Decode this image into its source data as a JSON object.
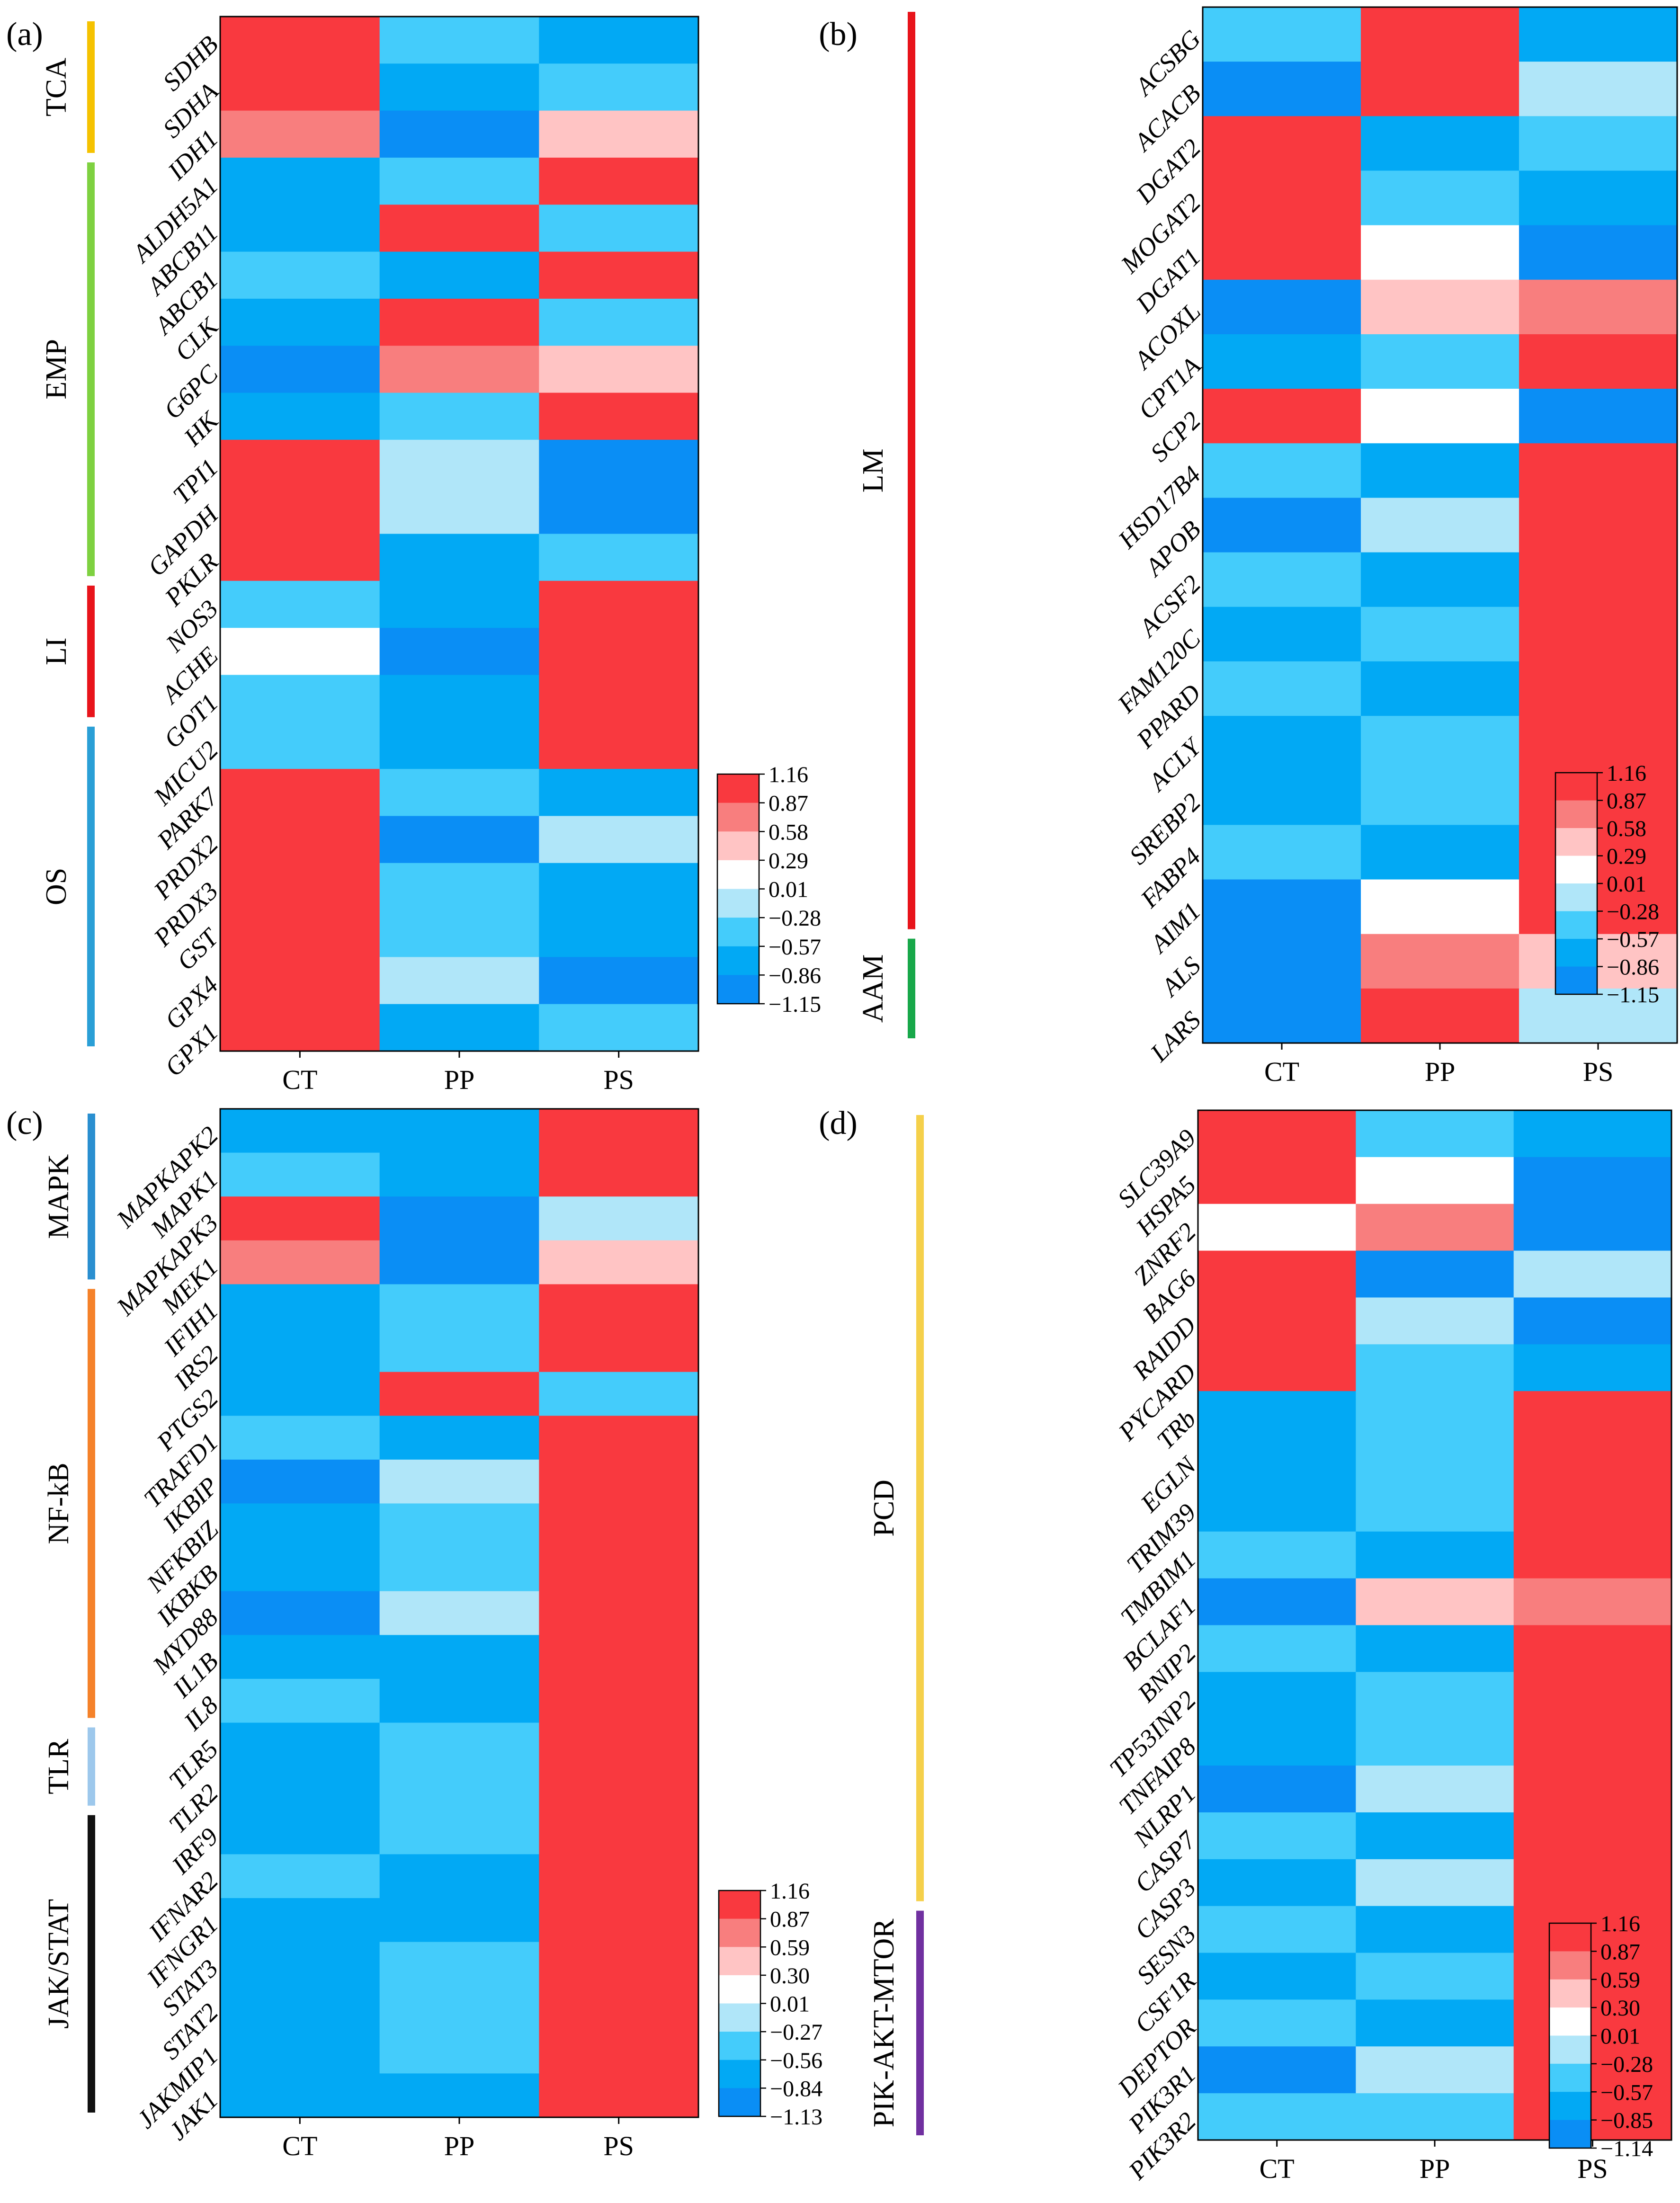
{
  "chart_data": [
    {
      "type": "heatmap",
      "panel_label": "(a)",
      "columns": [
        "CT",
        "PP",
        "PS"
      ],
      "rows": [
        "SDHB",
        "SDHA",
        "IDH1",
        "ALDH5A1",
        "ABCB11",
        "ABCB1",
        "CLK",
        "G6PC",
        "HK",
        "TPI1",
        "GAPDH",
        "PKLR",
        "NOS3",
        "ACHE",
        "GOT1",
        "MICU2",
        "PARK7",
        "PRDX2",
        "PRDX3",
        "GST",
        "GPX4",
        "GPX1"
      ],
      "values": [
        [
          1.16,
          -0.57,
          -0.86
        ],
        [
          1.16,
          -0.86,
          -0.57
        ],
        [
          0.87,
          -1.0,
          0.43
        ],
        [
          -0.86,
          -0.57,
          1.16
        ],
        [
          -0.86,
          1.16,
          -0.57
        ],
        [
          -0.57,
          -0.86,
          1.16
        ],
        [
          -0.86,
          1.16,
          -0.57
        ],
        [
          -1.0,
          0.87,
          0.43
        ],
        [
          -0.86,
          -0.57,
          1.16
        ],
        [
          1.16,
          -0.15,
          -1.0
        ],
        [
          1.16,
          -0.15,
          -1.0
        ],
        [
          1.16,
          -0.86,
          -0.57
        ],
        [
          -0.57,
          -0.86,
          1.16
        ],
        [
          0.15,
          -1.0,
          1.16
        ],
        [
          -0.57,
          -0.86,
          1.16
        ],
        [
          -0.57,
          -0.86,
          1.16
        ],
        [
          1.16,
          -0.57,
          -0.86
        ],
        [
          1.16,
          -1.0,
          -0.15
        ],
        [
          1.16,
          -0.57,
          -0.86
        ],
        [
          1.16,
          -0.57,
          -0.86
        ],
        [
          1.16,
          -0.15,
          -1.0
        ],
        [
          1.16,
          -0.86,
          -0.57
        ]
      ],
      "groups": [
        {
          "name": "TCA",
          "rows": [
            0,
            2
          ],
          "color": "#f5c200"
        },
        {
          "name": "EMP",
          "rows": [
            3,
            11
          ],
          "color": "#7ed140"
        },
        {
          "name": "LI",
          "rows": [
            12,
            14
          ],
          "color": "#e8141b"
        },
        {
          "name": "OS",
          "rows": [
            15,
            21
          ],
          "color": "#2a9fd6"
        }
      ],
      "colorbar_ticks": [
        "1.16",
        "0.87",
        "0.58",
        "0.29",
        "0.01",
        "−0.28",
        "−0.57",
        "−0.86",
        "−1.15"
      ]
    },
    {
      "type": "heatmap",
      "panel_label": "(b)",
      "columns": [
        "CT",
        "PP",
        "PS"
      ],
      "rows": [
        "ACSBG",
        "ACACB",
        "DGAT2",
        "MOGAT2",
        "DGAT1",
        "ACOXL",
        "CPT1A",
        "SCP2",
        "HSD17B4",
        "APOB",
        "ACSF2",
        "FAM120C",
        "PPARD",
        "ACLY",
        "SREBP2",
        "FABP4",
        "AIM1",
        "ALS",
        "LARS"
      ],
      "values": [
        [
          -0.57,
          1.16,
          -0.86
        ],
        [
          -1.0,
          1.16,
          -0.15
        ],
        [
          1.16,
          -0.86,
          -0.57
        ],
        [
          1.16,
          -0.57,
          -0.86
        ],
        [
          1.16,
          0.15,
          -1.0
        ],
        [
          -1.0,
          0.43,
          0.87
        ],
        [
          -0.86,
          -0.57,
          1.16
        ],
        [
          1.16,
          0.15,
          -1.0
        ],
        [
          -0.57,
          -0.86,
          1.16
        ],
        [
          -1.0,
          -0.15,
          1.16
        ],
        [
          -0.57,
          -0.86,
          1.16
        ],
        [
          -0.86,
          -0.57,
          1.16
        ],
        [
          -0.57,
          -0.86,
          1.16
        ],
        [
          -0.86,
          -0.57,
          1.16
        ],
        [
          -0.86,
          -0.57,
          1.16
        ],
        [
          -0.57,
          -0.86,
          1.16
        ],
        [
          -1.0,
          0.15,
          1.16
        ],
        [
          -1.0,
          0.87,
          0.43
        ],
        [
          -1.0,
          1.16,
          -0.15
        ]
      ],
      "groups": [
        {
          "name": "LM",
          "rows": [
            0,
            16
          ],
          "color": "#e8141b"
        },
        {
          "name": "AAM",
          "rows": [
            17,
            18
          ],
          "color": "#18a84a"
        }
      ],
      "colorbar_ticks": [
        "1.16",
        "0.87",
        "0.58",
        "0.29",
        "0.01",
        "−0.28",
        "−0.57",
        "−0.86",
        "−1.15"
      ]
    },
    {
      "type": "heatmap",
      "panel_label": "(c)",
      "columns": [
        "CT",
        "PP",
        "PS"
      ],
      "rows": [
        "MAPKAPK2",
        "MAPK1",
        "MAPKAPK3",
        "MEK1",
        "IFIH1",
        "IRS2",
        "PTGS2",
        "TRAFD1",
        "IKBIP",
        "NFKBIZ",
        "IKBKB",
        "MYD88",
        "IL1B",
        "IL8",
        "TLR5",
        "TLR2",
        "IRF9",
        "IFNAR2",
        "IFNGR1",
        "STAT3",
        "STAT2",
        "JAKMIP1",
        "JAK1"
      ],
      "values": [
        [
          -0.86,
          -0.86,
          1.16
        ],
        [
          -0.57,
          -0.86,
          1.16
        ],
        [
          1.16,
          -1.0,
          -0.15
        ],
        [
          0.87,
          -1.0,
          0.43
        ],
        [
          -0.86,
          -0.57,
          1.16
        ],
        [
          -0.86,
          -0.57,
          1.16
        ],
        [
          -0.86,
          1.16,
          -0.57
        ],
        [
          -0.57,
          -0.86,
          1.16
        ],
        [
          -1.0,
          -0.15,
          1.16
        ],
        [
          -0.86,
          -0.57,
          1.16
        ],
        [
          -0.86,
          -0.57,
          1.16
        ],
        [
          -1.0,
          -0.15,
          1.16
        ],
        [
          -0.86,
          -0.86,
          1.16
        ],
        [
          -0.57,
          -0.86,
          1.16
        ],
        [
          -0.86,
          -0.57,
          1.16
        ],
        [
          -0.86,
          -0.57,
          1.16
        ],
        [
          -0.86,
          -0.57,
          1.16
        ],
        [
          -0.57,
          -0.86,
          1.16
        ],
        [
          -0.86,
          -0.86,
          1.16
        ],
        [
          -0.86,
          -0.57,
          1.16
        ],
        [
          -0.86,
          -0.57,
          1.16
        ],
        [
          -0.86,
          -0.57,
          1.16
        ],
        [
          -0.86,
          -0.86,
          1.16
        ]
      ],
      "groups": [
        {
          "name": "MAPK",
          "rows": [
            0,
            3
          ],
          "color": "#2a8fd0"
        },
        {
          "name": "NF-kB",
          "rows": [
            4,
            13
          ],
          "color": "#f5822a"
        },
        {
          "name": "TLR",
          "rows": [
            14,
            15
          ],
          "color": "#9dc8ec"
        },
        {
          "name": "JAK/STAT",
          "rows": [
            16,
            22
          ],
          "color": "#111111"
        }
      ],
      "colorbar_ticks": [
        "1.16",
        "0.87",
        "0.59",
        "0.30",
        "0.01",
        "−0.27",
        "−0.56",
        "−0.84",
        "−1.13"
      ]
    },
    {
      "type": "heatmap",
      "panel_label": "(d)",
      "columns": [
        "CT",
        "PP",
        "PS"
      ],
      "rows": [
        "SLC39A9",
        "HSPA5",
        "ZNRF2",
        "BAG6",
        "RAIDD",
        "PYCARD",
        "TRb",
        "EGLN",
        "TRIM39",
        "TMBIM1",
        "BCLAF1",
        "BNIP2",
        "TP53INP2",
        "TNFAIP8",
        "NLRP1",
        "CASP7",
        "CASP3",
        "SESN3",
        "CSF1R",
        "DEPTOR",
        "PIK3R1",
        "PIK3R2"
      ],
      "values": [
        [
          1.16,
          -0.57,
          -0.86
        ],
        [
          1.16,
          0.15,
          -1.0
        ],
        [
          0.15,
          0.87,
          -1.0
        ],
        [
          1.16,
          -1.0,
          -0.15
        ],
        [
          1.16,
          -0.15,
          -1.0
        ],
        [
          1.16,
          -0.57,
          -0.86
        ],
        [
          -0.86,
          -0.57,
          1.16
        ],
        [
          -0.86,
          -0.57,
          1.16
        ],
        [
          -0.86,
          -0.57,
          1.16
        ],
        [
          -0.57,
          -0.86,
          1.16
        ],
        [
          -1.0,
          0.43,
          0.87
        ],
        [
          -0.57,
          -0.86,
          1.16
        ],
        [
          -0.86,
          -0.57,
          1.16
        ],
        [
          -0.86,
          -0.57,
          1.16
        ],
        [
          -1.0,
          -0.15,
          1.16
        ],
        [
          -0.57,
          -0.86,
          1.16
        ],
        [
          -0.86,
          -0.15,
          1.16
        ],
        [
          -0.57,
          -0.86,
          1.16
        ],
        [
          -0.86,
          -0.57,
          1.16
        ],
        [
          -0.57,
          -0.86,
          1.16
        ],
        [
          -1.0,
          -0.15,
          1.16
        ],
        [
          -0.57,
          -0.57,
          1.16
        ]
      ],
      "groups": [
        {
          "name": "PCD",
          "rows": [
            0,
            16
          ],
          "color": "#f5d04a"
        },
        {
          "name": "PIK-AKT-MTOR",
          "rows": [
            17,
            21
          ],
          "color": "#7030a0"
        }
      ],
      "colorbar_ticks": [
        "1.16",
        "0.87",
        "0.59",
        "0.30",
        "0.01",
        "−0.28",
        "−0.57",
        "−0.85",
        "−1.14"
      ]
    }
  ],
  "palette": {
    "bins": [
      "#0a8ef5",
      "#02a9f4",
      "#44ccfb",
      "#b0e6f9",
      "#ffffff",
      "#ffc4c4",
      "#f87e7e",
      "#f9393f"
    ],
    "frame": "#000000"
  }
}
